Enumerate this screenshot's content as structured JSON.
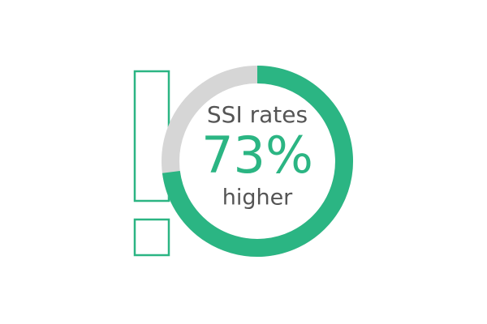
{
  "chart_data": {
    "type": "donut",
    "title": "SSI rates",
    "subtitle": "higher",
    "values": [
      73
    ],
    "value_labels": [
      "73%"
    ],
    "color": "#2bb583",
    "track_color": "#d6d6d6"
  }
}
